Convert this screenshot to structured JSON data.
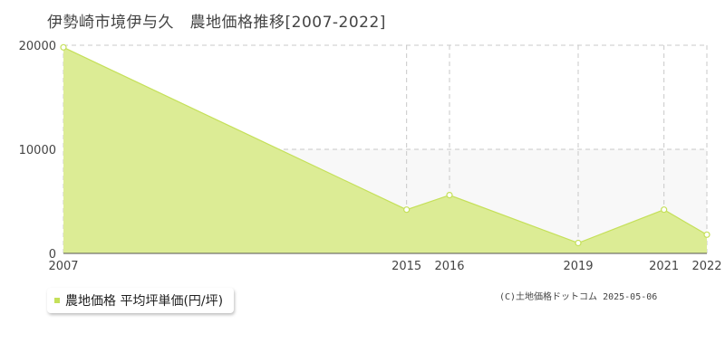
{
  "chart_data": {
    "type": "area",
    "title": "伊勢崎市境伊与久　農地価格推移[2007-2022]",
    "xlabel": "",
    "ylabel": "",
    "x_ticks": [
      "2007",
      "2015",
      "2016",
      "2019",
      "2021",
      "2022"
    ],
    "y_ticks": [
      "0",
      "10000",
      "20000"
    ],
    "xlim": [
      2007,
      2022
    ],
    "ylim": [
      0,
      20000
    ],
    "grid": true,
    "legend_position": "bottom-left",
    "series": [
      {
        "name": "農地価格 平均坪単価(円/坪)",
        "x": [
          2007,
          2015,
          2016,
          2019,
          2021,
          2022
        ],
        "y": [
          19800,
          4200,
          5600,
          1000,
          4200,
          1800
        ]
      }
    ]
  },
  "credit": "(C)土地価格ドットコム 2025-05-06",
  "colors": {
    "fill": "#dcec95",
    "line": "#c5e05a",
    "band": "#f8f8f8",
    "grid": "#c8c8c8",
    "axis": "#555555",
    "marker_fill": "#ffffff"
  }
}
